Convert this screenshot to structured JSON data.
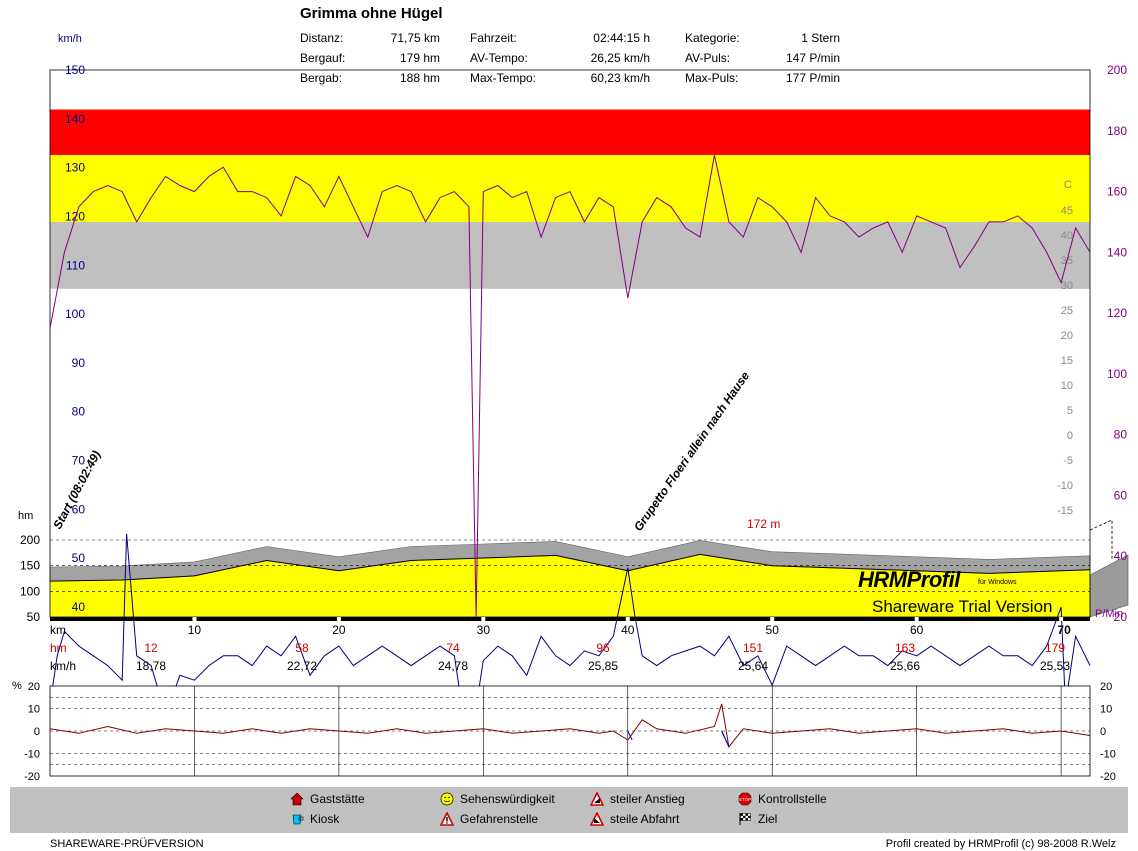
{
  "header": {
    "title": "Grimma ohne Hügel",
    "stats": [
      {
        "label": "Distanz:",
        "value": "71,75 km"
      },
      {
        "label": "Bergauf:",
        "value": "179 hm"
      },
      {
        "label": "Bergab:",
        "value": "188 hm"
      },
      {
        "label": "Fahrzeit:",
        "value": "02:44:15 h"
      },
      {
        "label": "AV-Tempo:",
        "value": "26,25 km/h"
      },
      {
        "label": "Max-Tempo:",
        "value": "60,23 km/h"
      },
      {
        "label": "Kategorie:",
        "value": "1 Stern"
      },
      {
        "label": "AV-Puls:",
        "value": "147 P/min"
      },
      {
        "label": "Max-Puls:",
        "value": "177 P/min"
      }
    ]
  },
  "chart_data": [
    {
      "type": "line",
      "title": "Grimma ohne Hügel",
      "xlabel": "km",
      "x_ticks": [
        10,
        20,
        30,
        40,
        50,
        60,
        70
      ],
      "xlim": [
        0,
        72
      ],
      "axes": {
        "speed": {
          "label": "km/h",
          "ticks": [
            150,
            140,
            130,
            120,
            110,
            100,
            90,
            80,
            70,
            60,
            50,
            40
          ],
          "range": [
            40,
            150
          ]
        },
        "altitude": {
          "label": "hm",
          "ticks": [
            200,
            150,
            100,
            50
          ],
          "range": [
            50,
            200
          ]
        },
        "pulse": {
          "label": "P/Min",
          "ticks": [
            200,
            180,
            160,
            140,
            120,
            100,
            80,
            60,
            40,
            20
          ],
          "range": [
            20,
            200
          ]
        },
        "gradient_inner": {
          "label": "C",
          "ticks": [
            45,
            40,
            35,
            30,
            25,
            20,
            15,
            10,
            5,
            0,
            -5,
            -10,
            -15
          ]
        }
      },
      "zones": [
        {
          "name": "red",
          "color": "#ff0000",
          "pulse_range": [
            172,
            187
          ]
        },
        {
          "name": "yellow",
          "color": "#ffff00",
          "pulse_range": [
            150,
            172
          ]
        },
        {
          "name": "gray",
          "color": "#c0c0c0",
          "pulse_range": [
            128,
            150
          ]
        }
      ],
      "series": [
        {
          "key": "pulse",
          "color": "#800080",
          "x": [
            0,
            1,
            2,
            3,
            4,
            5,
            6,
            7,
            8,
            9,
            10,
            11,
            12,
            13,
            14,
            15,
            16,
            17,
            18,
            19,
            20,
            21,
            22,
            23,
            24,
            25,
            26,
            27,
            28,
            29,
            29.5,
            30,
            31,
            32,
            33,
            34,
            35,
            36,
            37,
            38,
            39,
            40,
            41,
            42,
            43,
            44,
            45,
            46,
            47,
            48,
            49,
            50,
            51,
            52,
            53,
            54,
            55,
            56,
            57,
            58,
            59,
            60,
            61,
            62,
            63,
            64,
            65,
            66,
            67,
            68,
            69,
            70,
            71,
            72
          ],
          "y": [
            115,
            140,
            155,
            160,
            162,
            160,
            150,
            158,
            165,
            162,
            160,
            165,
            168,
            160,
            160,
            158,
            152,
            165,
            162,
            155,
            165,
            155,
            145,
            160,
            162,
            160,
            150,
            158,
            160,
            155,
            20,
            160,
            162,
            158,
            160,
            145,
            158,
            160,
            150,
            158,
            155,
            125,
            150,
            158,
            155,
            148,
            145,
            172,
            150,
            145,
            158,
            155,
            150,
            140,
            158,
            152,
            150,
            145,
            148,
            150,
            140,
            152,
            150,
            148,
            135,
            142,
            150,
            150,
            152,
            148,
            140,
            130,
            148,
            140
          ]
        },
        {
          "key": "speed",
          "color": "#000080",
          "x": [
            0,
            0.5,
            1,
            2,
            3,
            4,
            5,
            5.3,
            6,
            7,
            8,
            9,
            10,
            11,
            12,
            13,
            14,
            15,
            16,
            17,
            18,
            19,
            20,
            21,
            22,
            23,
            24,
            25,
            26,
            27,
            28,
            29,
            30,
            31,
            32,
            33,
            34,
            35,
            36,
            37,
            38,
            39,
            40,
            40.5,
            41,
            42,
            43,
            44,
            45,
            46,
            47,
            48,
            49,
            50,
            51,
            52,
            53,
            54,
            55,
            56,
            57,
            58,
            59,
            60,
            61,
            62,
            63,
            64,
            65,
            66,
            67,
            68,
            69,
            70,
            70.3,
            71,
            72
          ],
          "y": [
            20,
            30,
            35,
            32,
            30,
            28,
            25,
            55,
            30,
            28,
            18,
            26,
            25,
            28,
            30,
            30,
            28,
            32,
            30,
            34,
            26,
            30,
            32,
            28,
            30,
            32,
            30,
            28,
            30,
            32,
            30,
            10,
            29,
            32,
            30,
            26,
            34,
            30,
            28,
            31,
            30,
            34,
            48,
            38,
            30,
            28,
            30,
            31,
            32,
            30,
            34,
            28,
            30,
            24,
            32,
            30,
            28,
            30,
            32,
            30,
            30,
            28,
            31,
            30,
            32,
            30,
            28,
            30,
            32,
            30,
            30,
            28,
            32,
            40,
            20,
            34,
            28
          ]
        },
        {
          "key": "altitude",
          "color": "#000000",
          "x": [
            0,
            5,
            10,
            15,
            20,
            25,
            30,
            35,
            40,
            45,
            50,
            55,
            60,
            65,
            70,
            72
          ],
          "y": [
            120,
            122,
            130,
            160,
            140,
            160,
            165,
            170,
            140,
            172,
            150,
            145,
            140,
            135,
            140,
            142
          ]
        }
      ],
      "annotations": [
        "Start (08:02:49)",
        "Grupetto Floeri allein nach Hause",
        "172 m"
      ],
      "summary_rows": {
        "km_label": "km",
        "hm_label": "hm",
        "kmh_label": "km/h",
        "hm_values": [
          "12",
          "58",
          "74",
          "96",
          "151",
          "163",
          "179"
        ],
        "kmh_values": [
          "18,78",
          "22,72",
          "24,78",
          "25,85",
          "25,64",
          "25,66",
          "25,53"
        ]
      }
    },
    {
      "type": "line",
      "title": "",
      "ylabel": "%",
      "ylim": [
        -20,
        20
      ],
      "y_ticks": [
        20,
        10,
        0,
        -10,
        -20
      ],
      "series": [
        {
          "key": "gradient",
          "color": "#800000",
          "x": [
            0,
            2,
            4,
            6,
            8,
            10,
            12,
            14,
            16,
            18,
            20,
            22,
            24,
            26,
            28,
            30,
            32,
            34,
            36,
            38,
            39,
            40,
            41,
            42,
            44,
            46,
            46.5,
            47,
            48,
            50,
            52,
            54,
            56,
            58,
            60,
            62,
            64,
            66,
            68,
            70,
            72
          ],
          "y": [
            1,
            -1,
            2,
            -1,
            1,
            0,
            -1,
            1,
            -1,
            1,
            0,
            -1,
            1,
            -1,
            0,
            1,
            -1,
            0,
            1,
            -1,
            0,
            -4,
            5,
            1,
            -1,
            2,
            12,
            -7,
            1,
            -1,
            0,
            1,
            -1,
            0,
            1,
            -1,
            0,
            1,
            -1,
            0,
            -2
          ]
        }
      ]
    }
  ],
  "legend": [
    {
      "icon": "house-icon",
      "label": "Gaststätte"
    },
    {
      "icon": "kiosk-icon",
      "label": "Kiosk"
    },
    {
      "icon": "smiley-icon",
      "label": "Sehenswürdigkeit"
    },
    {
      "icon": "warning-icon",
      "label": "Gefahrenstelle"
    },
    {
      "icon": "climb-icon",
      "label": "steiler Anstieg"
    },
    {
      "icon": "descent-icon",
      "label": "steile Abfahrt"
    },
    {
      "icon": "stop-icon",
      "label": "Kontrollstelle"
    },
    {
      "icon": "checkered-flag-icon",
      "label": "Ziel"
    }
  ],
  "watermark": {
    "title": "HRMProfil",
    "subtitle": "für Windows",
    "trial": "Shareware Trial  Version"
  },
  "footer": {
    "left": "SHAREWARE-PRÜFVERSION",
    "right": "Profil created by HRMProfil (c) 98-2008 R.Welz"
  }
}
